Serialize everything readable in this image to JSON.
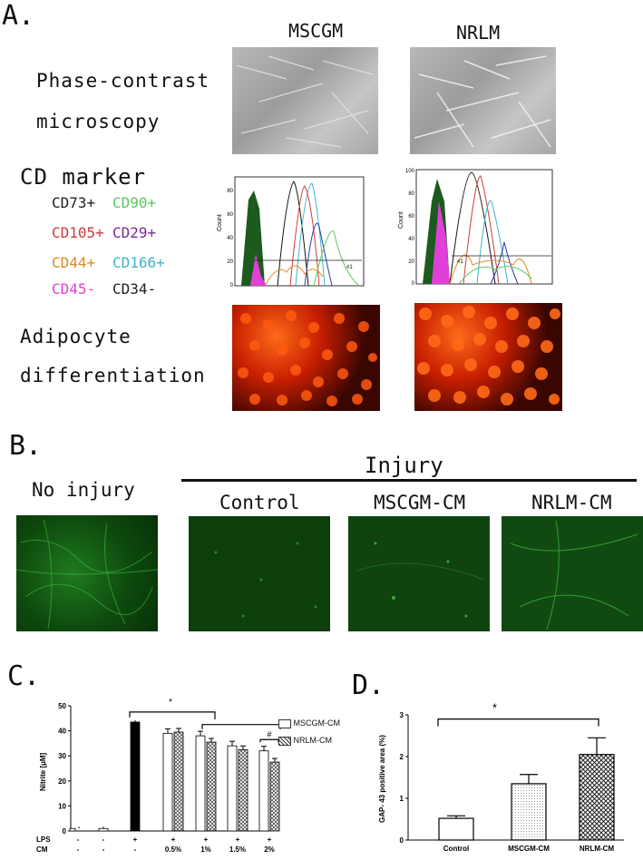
{
  "panels": {
    "a": "A.",
    "b": "B.",
    "c": "C.",
    "d": "D."
  },
  "panel_a": {
    "col1": "MSCGM",
    "col2": "NRLM",
    "row1_line1": "Phase-contrast",
    "row1_line2": "microscopy",
    "row2": "CD marker",
    "row3_line1": "Adipocyte",
    "row3_line2": "differentiation",
    "markers": [
      {
        "text": "CD73+",
        "color": "#222222"
      },
      {
        "text": "CD90+",
        "color": "#5cc85c"
      },
      {
        "text": "CD105+",
        "color": "#d23a3a"
      },
      {
        "text": "CD29+",
        "color": "#7a2a9a"
      },
      {
        "text": "CD44+",
        "color": "#e08a1c"
      },
      {
        "text": "CD166+",
        "color": "#3ab7c8"
      },
      {
        "text": "CD45-",
        "color": "#e040d8"
      },
      {
        "text": "CD34-",
        "color": "#222222"
      }
    ],
    "hist1": {
      "y_label": "Count",
      "ticks": [
        "80",
        "60",
        "40",
        "20",
        "0"
      ],
      "gate": "#1"
    },
    "hist2": {
      "y_label": "Count",
      "ticks": [
        "100",
        "80",
        "60",
        "40",
        "20",
        "0"
      ],
      "gate": "#1"
    }
  },
  "panel_b": {
    "no_injury": "No injury",
    "injury": "Injury",
    "control": "Control",
    "mscgm": "MSCGM-CM",
    "nrlm": "NRLM-CM"
  },
  "panel_c": {
    "chart_data": {
      "type": "bar",
      "ylabel": "Nitrite [μM]",
      "ylim": [
        0,
        50
      ],
      "yticks": [
        "0",
        "10",
        "20",
        "30",
        "40",
        "50"
      ],
      "row_labels": [
        "LPS",
        "CM"
      ],
      "lps": [
        "-",
        "-",
        "+",
        "+",
        "+",
        "+",
        "+"
      ],
      "cm": [
        "-",
        "-",
        "-",
        "0.5%",
        "1%",
        "1.5%",
        "2%"
      ],
      "control_values": [
        1,
        1,
        43.5
      ],
      "series": [
        {
          "name": "MSCGM-CM",
          "values": [
            39,
            38,
            34,
            32
          ]
        },
        {
          "name": "NRLM-CM",
          "values": [
            39.5,
            35.5,
            32.5,
            27.5
          ]
        }
      ],
      "annotations": [
        "*",
        "#"
      ]
    }
  },
  "panel_d": {
    "chart_data": {
      "type": "bar",
      "ylabel": "GAP- 43 positive area (%)",
      "ylim": [
        0,
        3
      ],
      "yticks": [
        "0",
        "1",
        "2",
        "3"
      ],
      "categories": [
        "Control",
        "MSCGM-CM",
        "NRLM-CM"
      ],
      "values": [
        0.52,
        1.35,
        2.05
      ],
      "errors": [
        0.06,
        0.22,
        0.4
      ],
      "annotations": [
        "*"
      ]
    }
  }
}
